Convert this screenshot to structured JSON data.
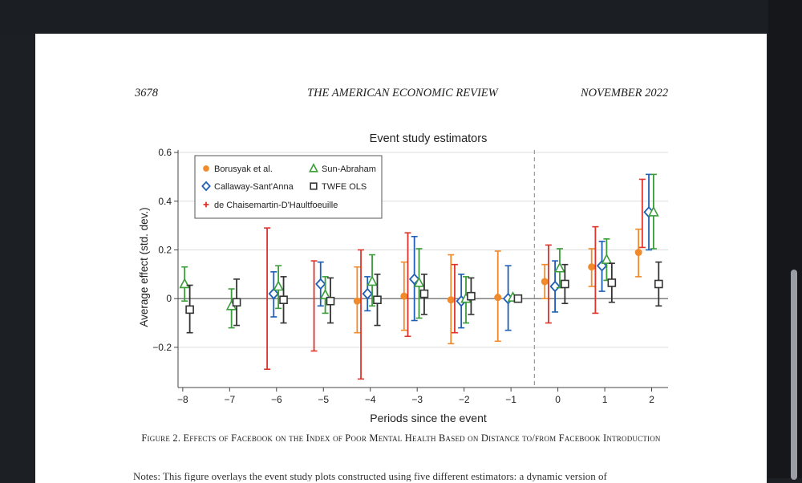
{
  "page_header": {
    "page_number": "3678",
    "journal": "THE AMERICAN ECONOMIC REVIEW",
    "date": "NOVEMBER 2022"
  },
  "figure_caption": "Figure 2. Effects of Facebook on the Index of Poor Mental Health Based on Distance to/from Facebook Introduction",
  "notes_text": "Notes: This figure overlays the event study plots constructed using five different estimators: a dynamic version of",
  "colors": {
    "borusyak": "#f08a2a",
    "callaway": "#1f5fb5",
    "dechaisemartin": "#e0332b",
    "sun": "#3a9d3a",
    "twfe": "#333333"
  },
  "chart_data": {
    "type": "scatter",
    "title": "Event study estimators",
    "xlabel": "Periods since the event",
    "ylabel": "Average effect (std. dev.)",
    "xlim": [
      -8.1,
      2.35
    ],
    "ylim": [
      -0.365,
      0.61
    ],
    "x_ticks": [
      -8,
      -7,
      -6,
      -5,
      -4,
      -3,
      -2,
      -1,
      0,
      1,
      2
    ],
    "x_tick_labels": [
      "−8",
      "−7",
      "−6",
      "−5",
      "−4",
      "−3",
      "−2",
      "−1",
      "0",
      "1",
      "2"
    ],
    "y_ticks": [
      -0.2,
      0,
      0.2,
      0.4,
      0.6
    ],
    "y_tick_labels": [
      "−0.2",
      "0",
      "0.2",
      "0.4",
      "0.6"
    ],
    "event_line_x": -0.5,
    "grid": true,
    "legend_position": "top-left",
    "series": [
      {
        "name": "Borusyak et al.",
        "marker": "circle",
        "color": "#f08a2a",
        "points": [
          {
            "x": -4,
            "y": -0.01,
            "lo": -0.14,
            "hi": 0.13
          },
          {
            "x": -3,
            "y": 0.01,
            "lo": -0.13,
            "hi": 0.15
          },
          {
            "x": -2,
            "y": -0.005,
            "lo": -0.185,
            "hi": 0.18
          },
          {
            "x": -1,
            "y": 0.005,
            "lo": -0.175,
            "hi": 0.195
          },
          {
            "x": 0,
            "y": 0.07,
            "lo": 0.0,
            "hi": 0.14
          },
          {
            "x": 1,
            "y": 0.13,
            "lo": 0.05,
            "hi": 0.205
          },
          {
            "x": 2,
            "y": 0.19,
            "lo": 0.09,
            "hi": 0.285
          }
        ]
      },
      {
        "name": "Callaway-Sant'Anna",
        "marker": "diamond",
        "color": "#1f5fb5",
        "points": [
          {
            "x": -6,
            "y": 0.02,
            "lo": -0.075,
            "hi": 0.11
          },
          {
            "x": -5,
            "y": 0.06,
            "lo": -0.03,
            "hi": 0.15
          },
          {
            "x": -4,
            "y": 0.02,
            "lo": -0.05,
            "hi": 0.09
          },
          {
            "x": -3,
            "y": 0.08,
            "lo": -0.09,
            "hi": 0.255
          },
          {
            "x": -2,
            "y": -0.01,
            "lo": -0.12,
            "hi": 0.1
          },
          {
            "x": -1,
            "y": 0.0,
            "lo": -0.13,
            "hi": 0.135
          },
          {
            "x": 0,
            "y": 0.05,
            "lo": -0.055,
            "hi": 0.155
          },
          {
            "x": 1,
            "y": 0.135,
            "lo": 0.03,
            "hi": 0.235
          },
          {
            "x": 2,
            "y": 0.355,
            "lo": 0.2,
            "hi": 0.51
          }
        ]
      },
      {
        "name": "de Chaisemartin-D'Haultfoeuille",
        "marker": "plus",
        "color": "#e0332b",
        "points": [
          {
            "x": -6,
            "y": 0.0,
            "lo": -0.29,
            "hi": 0.29
          },
          {
            "x": -5,
            "y": 0.0,
            "lo": -0.215,
            "hi": 0.155
          },
          {
            "x": -4,
            "y": 0.0,
            "lo": -0.33,
            "hi": 0.2
          },
          {
            "x": -3,
            "y": 0.0,
            "lo": -0.155,
            "hi": 0.27
          },
          {
            "x": -2,
            "y": 0.0,
            "lo": -0.14,
            "hi": 0.14
          },
          {
            "x": 0,
            "y": 0.07,
            "lo": -0.1,
            "hi": 0.22
          },
          {
            "x": 1,
            "y": 0.12,
            "lo": -0.06,
            "hi": 0.295
          },
          {
            "x": 2,
            "y": 0.35,
            "lo": 0.21,
            "hi": 0.49
          }
        ]
      },
      {
        "name": "Sun-Abraham",
        "marker": "triangle",
        "color": "#3a9d3a",
        "points": [
          {
            "x": -8,
            "y": 0.06,
            "lo": -0.01,
            "hi": 0.13
          },
          {
            "x": -7,
            "y": -0.03,
            "lo": -0.12,
            "hi": 0.04
          },
          {
            "x": -6,
            "y": 0.05,
            "lo": -0.04,
            "hi": 0.135
          },
          {
            "x": -5,
            "y": 0.015,
            "lo": -0.06,
            "hi": 0.09
          },
          {
            "x": -4,
            "y": 0.07,
            "lo": -0.03,
            "hi": 0.18
          },
          {
            "x": -3,
            "y": 0.065,
            "lo": -0.08,
            "hi": 0.205
          },
          {
            "x": -2,
            "y": 0.0,
            "lo": -0.1,
            "hi": 0.09
          },
          {
            "x": -1,
            "y": 0.005,
            "lo": 0.0,
            "hi": 0.01
          },
          {
            "x": 0,
            "y": 0.125,
            "lo": 0.045,
            "hi": 0.205
          },
          {
            "x": 1,
            "y": 0.16,
            "lo": 0.075,
            "hi": 0.245
          },
          {
            "x": 2,
            "y": 0.355,
            "lo": 0.205,
            "hi": 0.51
          }
        ]
      },
      {
        "name": "TWFE OLS",
        "marker": "square",
        "color": "#333333",
        "points": [
          {
            "x": -8,
            "y": -0.045,
            "lo": -0.14,
            "hi": 0.055
          },
          {
            "x": -7,
            "y": -0.015,
            "lo": -0.11,
            "hi": 0.08
          },
          {
            "x": -6,
            "y": -0.005,
            "lo": -0.1,
            "hi": 0.09
          },
          {
            "x": -5,
            "y": -0.01,
            "lo": -0.1,
            "hi": 0.085
          },
          {
            "x": -4,
            "y": -0.005,
            "lo": -0.11,
            "hi": 0.1
          },
          {
            "x": -3,
            "y": 0.02,
            "lo": -0.065,
            "hi": 0.1
          },
          {
            "x": -2,
            "y": 0.01,
            "lo": -0.065,
            "hi": 0.085
          },
          {
            "x": -1,
            "y": 0.0,
            "lo": 0.0,
            "hi": 0.0
          },
          {
            "x": 0,
            "y": 0.06,
            "lo": -0.02,
            "hi": 0.14
          },
          {
            "x": 1,
            "y": 0.065,
            "lo": -0.015,
            "hi": 0.145
          },
          {
            "x": 2,
            "y": 0.06,
            "lo": -0.03,
            "hi": 0.15
          }
        ]
      }
    ],
    "legend": [
      {
        "name": "Borusyak et al.",
        "marker": "circle",
        "color": "#f08a2a"
      },
      {
        "name": "Sun-Abraham",
        "marker": "triangle",
        "color": "#3a9d3a"
      },
      {
        "name": "Callaway-Sant'Anna",
        "marker": "diamond",
        "color": "#1f5fb5"
      },
      {
        "name": "TWFE OLS",
        "marker": "square",
        "color": "#333333"
      },
      {
        "name": "de Chaisemartin-D'Haultfoeuille",
        "marker": "plus",
        "color": "#e0332b"
      }
    ]
  }
}
